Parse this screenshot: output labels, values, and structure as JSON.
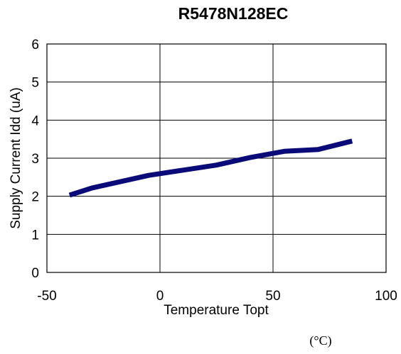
{
  "chart_data": {
    "type": "line",
    "title": "R5478N128EC",
    "xlabel": "Temperature Topt",
    "ylabel": "Supply Current Idd (uA)",
    "unit_note": "(°C)",
    "xlim": [
      -50,
      100
    ],
    "ylim": [
      0,
      6
    ],
    "x_ticks": [
      -50,
      0,
      50,
      100
    ],
    "y_ticks": [
      0,
      1,
      2,
      3,
      4,
      5,
      6
    ],
    "grid": true,
    "colors": {
      "series": "#0a0a78"
    },
    "series": [
      {
        "x": [
          -40,
          -30,
          -5,
          25,
          40,
          55,
          70,
          85
        ],
        "y": [
          2.03,
          2.22,
          2.55,
          2.82,
          3.02,
          3.18,
          3.23,
          3.45
        ]
      }
    ]
  }
}
